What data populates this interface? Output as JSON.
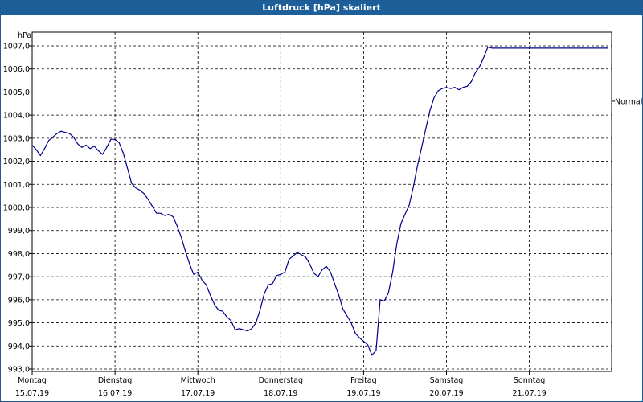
{
  "chart_data": {
    "type": "line",
    "title": "Luftdruck [hPa] skaliert",
    "ylabel": "hPa",
    "xlabel": "",
    "ylim": [
      993.0,
      1007.5
    ],
    "yticks": [
      {
        "value": 993.0,
        "label": "993,0"
      },
      {
        "value": 994.0,
        "label": "994,0"
      },
      {
        "value": 995.0,
        "label": "995,0"
      },
      {
        "value": 996.0,
        "label": "996,0"
      },
      {
        "value": 997.0,
        "label": "997,0"
      },
      {
        "value": 998.0,
        "label": "998,0"
      },
      {
        "value": 999.0,
        "label": "999,0"
      },
      {
        "value": 1000.0,
        "label": "1000,0"
      },
      {
        "value": 1001.0,
        "label": "1001,0"
      },
      {
        "value": 1002.0,
        "label": "1002,0"
      },
      {
        "value": 1003.0,
        "label": "1003,0"
      },
      {
        "value": 1004.0,
        "label": "1004,0"
      },
      {
        "value": 1005.0,
        "label": "1005,0"
      },
      {
        "value": 1006.0,
        "label": "1006,0"
      },
      {
        "value": 1007.0,
        "label": "1007,0"
      }
    ],
    "xlim": [
      0,
      7
    ],
    "xticks": [
      {
        "value": 0,
        "day": "Montag",
        "date": "15.07.19"
      },
      {
        "value": 1,
        "day": "Dienstag",
        "date": "16.07.19"
      },
      {
        "value": 2,
        "day": "Mittwoch",
        "date": "17.07.19"
      },
      {
        "value": 3,
        "day": "Donnerstag",
        "date": "18.07.19"
      },
      {
        "value": 4,
        "day": "Freitag",
        "date": "19.07.19"
      },
      {
        "value": 5,
        "day": "Samstag",
        "date": "20.07.19"
      },
      {
        "value": 6,
        "day": "Sonntag",
        "date": "21.07.19"
      }
    ],
    "reference_line": {
      "label": "Normal",
      "value": 1004.6
    },
    "grid": true,
    "line_color": "#00008b",
    "series": [
      {
        "name": "Luftdruck",
        "x": [
          0,
          0.05,
          0.1,
          0.15,
          0.2,
          0.25,
          0.3,
          0.35,
          0.4,
          0.45,
          0.5,
          0.55,
          0.6,
          0.65,
          0.7,
          0.75,
          0.8,
          0.85,
          0.9,
          0.95,
          1.0,
          1.05,
          1.1,
          1.15,
          1.2,
          1.25,
          1.3,
          1.35,
          1.4,
          1.45,
          1.5,
          1.55,
          1.6,
          1.65,
          1.7,
          1.75,
          1.8,
          1.85,
          1.9,
          1.95,
          2.0,
          2.05,
          2.1,
          2.15,
          2.2,
          2.25,
          2.3,
          2.35,
          2.4,
          2.45,
          2.5,
          2.55,
          2.6,
          2.65,
          2.7,
          2.75,
          2.8,
          2.85,
          2.9,
          2.95,
          3.0,
          3.05,
          3.1,
          3.15,
          3.2,
          3.25,
          3.3,
          3.35,
          3.4,
          3.45,
          3.5,
          3.55,
          3.6,
          3.65,
          3.7,
          3.75,
          3.8,
          3.85,
          3.9,
          3.95,
          4.0,
          4.05,
          4.1,
          4.15,
          4.2,
          4.25,
          4.3,
          4.35,
          4.4,
          4.45,
          4.5,
          4.55,
          4.6,
          4.65,
          4.7,
          4.75,
          4.8,
          4.85,
          4.9,
          4.95,
          5.0,
          5.05,
          5.1,
          5.15,
          5.2,
          5.25,
          5.3,
          5.35,
          5.4,
          5.45,
          5.5,
          5.55,
          5.6,
          5.65,
          5.7,
          5.75,
          5.8,
          5.85,
          5.9,
          5.95,
          6.0,
          6.05,
          6.1,
          6.15,
          6.2,
          6.25,
          6.3,
          6.35,
          6.4,
          6.45,
          6.5,
          6.55,
          6.6,
          6.65,
          6.7,
          6.75,
          6.8,
          6.85,
          6.9,
          6.95,
          7.0
        ],
        "values": [
          1002.7,
          1002.5,
          1002.25,
          1002.55,
          1002.9,
          1003.05,
          1003.2,
          1003.3,
          1003.25,
          1003.2,
          1003.05,
          1002.75,
          1002.6,
          1002.7,
          1002.55,
          1002.65,
          1002.45,
          1002.3,
          1002.6,
          1002.95,
          1002.95,
          1002.8,
          1002.35,
          1001.7,
          1001.05,
          1000.85,
          1000.75,
          1000.6,
          1000.35,
          1000.05,
          999.75,
          999.75,
          999.65,
          999.7,
          999.6,
          999.2,
          998.7,
          998.1,
          997.55,
          997.1,
          997.2,
          996.85,
          996.65,
          996.2,
          995.8,
          995.55,
          995.5,
          995.25,
          995.1,
          994.7,
          994.75,
          994.7,
          994.65,
          994.75,
          995.0,
          995.55,
          996.25,
          996.65,
          996.7,
          997.05,
          997.1,
          997.2,
          997.75,
          997.9,
          998.05,
          997.95,
          997.85,
          997.55,
          997.15,
          997.0,
          997.3,
          997.45,
          997.2,
          996.7,
          996.2,
          995.6,
          995.3,
          995.0,
          994.55,
          994.35,
          994.2,
          994.05,
          993.6,
          993.8,
          996.0,
          995.95,
          996.3,
          997.2,
          998.4,
          999.3,
          999.7,
          1000.1,
          1000.9,
          1001.8,
          1002.6,
          1003.4,
          1004.2,
          1004.75,
          1005.05,
          1005.15,
          1005.2,
          1005.15,
          1005.2,
          1005.1,
          1005.2,
          1005.25,
          1005.45,
          1005.85,
          1006.1,
          1006.5,
          1006.95,
          1006.9,
          1006.9,
          1006.9,
          1006.9,
          1006.9,
          1006.9,
          1006.9,
          1006.9,
          1006.9,
          1006.9,
          1006.9,
          1006.9,
          1006.9,
          1006.9,
          1006.9,
          1006.9,
          1006.9,
          1006.9,
          1006.9,
          1006.9,
          1006.9,
          1006.9,
          1006.9,
          1006.9,
          1006.9,
          1006.9,
          1006.9,
          1006.9,
          1006.9,
          1006.9
        ],
        "x_valid_max": 6.97
      }
    ]
  }
}
